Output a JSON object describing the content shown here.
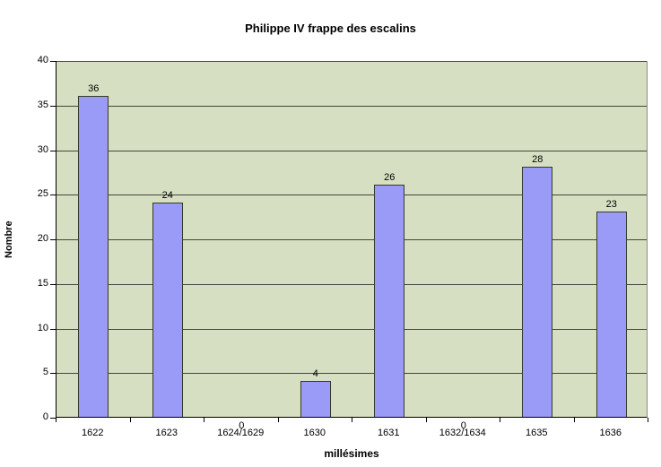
{
  "chart_data": {
    "type": "bar",
    "title": "Philippe IV frappe des escalins",
    "xlabel": "millésimes",
    "ylabel": "Nombre",
    "categories": [
      "1622",
      "1623",
      "1624/1629",
      "1630",
      "1631",
      "1632/1634",
      "1635",
      "1636"
    ],
    "values": [
      36,
      24,
      0,
      4,
      26,
      0,
      28,
      23
    ],
    "data_labels": [
      "36",
      "24",
      "0",
      "4",
      "26",
      "0",
      "28",
      "23"
    ],
    "ylim": [
      0,
      40
    ],
    "ytick_step": 5,
    "yticks": [
      0,
      5,
      10,
      15,
      20,
      25,
      30,
      35,
      40
    ],
    "grid": true,
    "legend": false,
    "colors": {
      "bar_fill": "#9a9af7",
      "bar_border": "#38382e",
      "plot_bg": "#d7dfc2",
      "gridline": "#45453d",
      "axis": "#000000",
      "plot_border_right": "#8c8c84",
      "background": "#ffffff",
      "text": "#000000"
    }
  }
}
